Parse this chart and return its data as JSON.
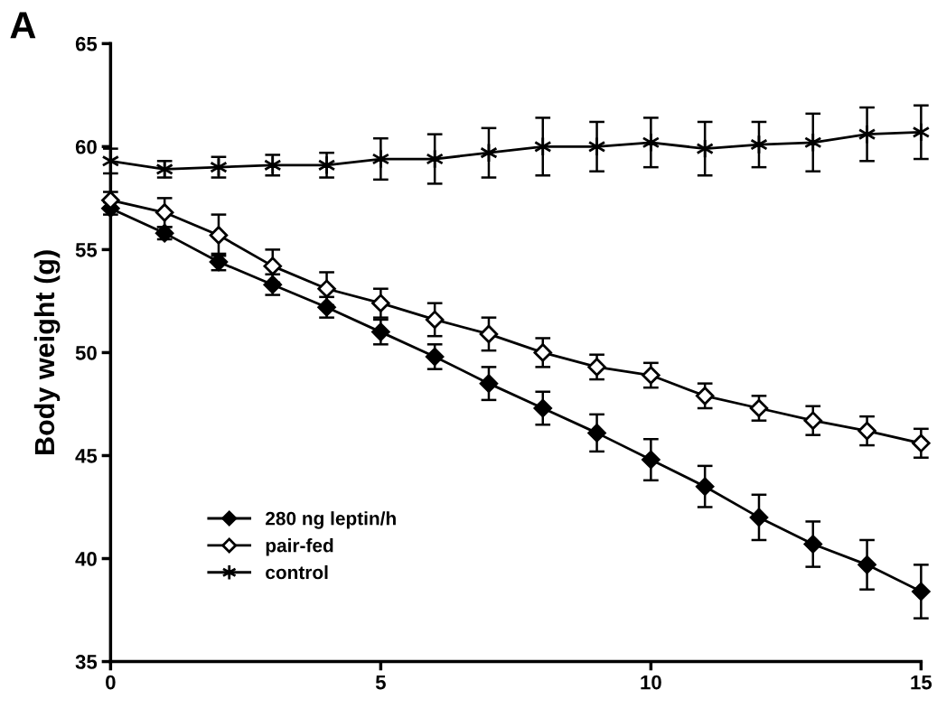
{
  "chart_data": {
    "type": "line",
    "ylabel": "Body weight (g)",
    "annotations": [
      "A"
    ],
    "x": [
      0,
      1,
      2,
      3,
      4,
      5,
      6,
      7,
      8,
      9,
      10,
      11,
      12,
      13,
      14,
      15
    ],
    "series": [
      {
        "name": "280 ng leptin/h",
        "color": "#000000",
        "marker": "diamond",
        "values": [
          57.0,
          55.8,
          54.4,
          53.3,
          52.2,
          51.0,
          49.8,
          48.5,
          47.3,
          46.1,
          44.8,
          43.5,
          42.0,
          40.7,
          39.7,
          38.4
        ],
        "errors": [
          0.3,
          0.3,
          0.4,
          0.5,
          0.5,
          0.6,
          0.6,
          0.8,
          0.8,
          0.9,
          1.0,
          1.0,
          1.1,
          1.1,
          1.2,
          1.3
        ]
      },
      {
        "name": "pair-fed",
        "color": "#000000",
        "marker": "diamond-open",
        "values": [
          57.4,
          56.8,
          55.7,
          54.2,
          53.1,
          52.4,
          51.6,
          50.9,
          50.0,
          49.3,
          48.9,
          47.9,
          47.3,
          46.7,
          46.2,
          45.6
        ],
        "errors": [
          0.4,
          0.7,
          1.0,
          0.8,
          0.8,
          0.7,
          0.8,
          0.8,
          0.7,
          0.6,
          0.6,
          0.6,
          0.6,
          0.7,
          0.7,
          0.7
        ]
      },
      {
        "name": "control",
        "color": "#000000",
        "marker": "cross",
        "values": [
          59.3,
          58.9,
          59.0,
          59.1,
          59.1,
          59.4,
          59.4,
          59.7,
          60.0,
          60.0,
          60.2,
          59.9,
          60.1,
          60.2,
          60.6,
          60.7
        ],
        "errors": [
          0.6,
          0.4,
          0.5,
          0.5,
          0.6,
          1.0,
          1.2,
          1.2,
          1.4,
          1.2,
          1.2,
          1.3,
          1.1,
          1.4,
          1.3,
          1.3
        ]
      }
    ],
    "xlim": [
      0,
      15
    ],
    "xticks": [
      0,
      5,
      10,
      15
    ],
    "ylim": [
      35,
      65
    ],
    "yticks": [
      35,
      40,
      45,
      50,
      55,
      60,
      65
    ],
    "grid": false,
    "legend": "bottom left",
    "line_style": "solid"
  }
}
